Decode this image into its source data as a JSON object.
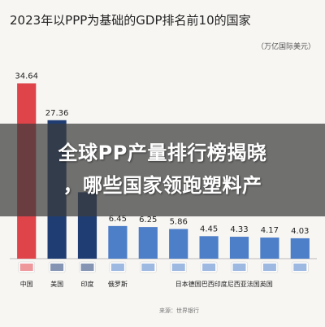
{
  "chart_data": {
    "type": "bar",
    "title": "2023年以PPP为基础的GDP排名前10的国家",
    "unit": "（万亿国际美元）",
    "categories": [
      "中国",
      "美国",
      "印度",
      "俄罗斯",
      "日本",
      "德国",
      "巴西",
      "印度尼西亚",
      "法国",
      "英国"
    ],
    "values": [
      34.64,
      27.36,
      13.12,
      6.45,
      6.25,
      5.86,
      4.45,
      4.33,
      4.17,
      4.03
    ],
    "value_labels": [
      "34.64",
      "27.36",
      "",
      "6.45",
      "6.25",
      "5.86",
      "4.45",
      "4.33",
      "4.17",
      "4.03"
    ],
    "ylim": [
      0,
      36
    ],
    "colors": [
      "#e0444b",
      "#1f3d73",
      "#1f3d73",
      "#4d7ec8",
      "#4d7ec8",
      "#4d7ec8",
      "#4d7ec8",
      "#4d7ec8",
      "#4d7ec8",
      "#4d7ec8"
    ]
  },
  "bottom_labels": {
    "china": "中国",
    "usa": "美国",
    "india": "印度",
    "russia": "俄罗斯",
    "rest": "日本德国巴西印度尼西亚法国英国"
  },
  "footer": {
    "source": "来源：世界银行"
  },
  "overlay": {
    "line1": "全球PP产量排行榜揭晓",
    "line2": "，哪些国家领跑塑料产"
  }
}
